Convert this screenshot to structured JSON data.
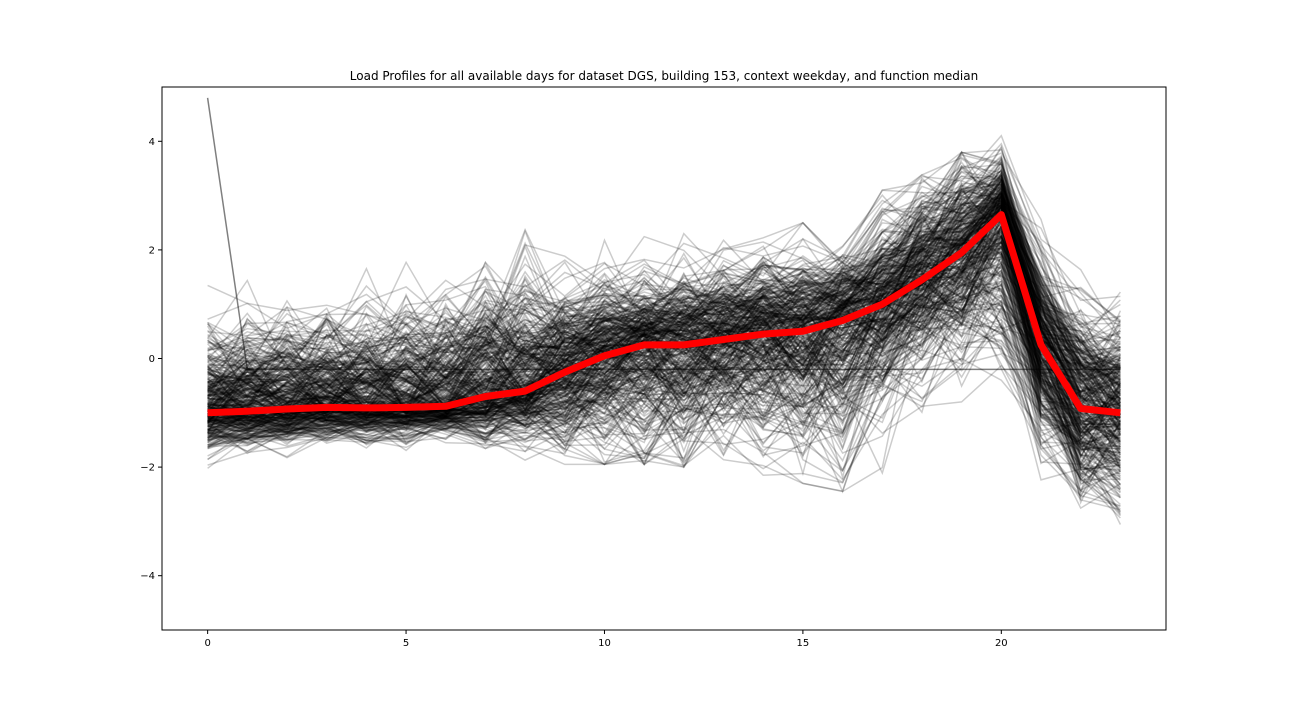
{
  "chart_data": {
    "type": "line",
    "title": "Load Profiles for all available days for dataset DGS, building 153, context weekday, and function median",
    "xlabel": "",
    "ylabel": "",
    "xlim": [
      -1.15,
      24.15
    ],
    "ylim": [
      -5,
      5
    ],
    "x_ticks": [
      0,
      5,
      10,
      15,
      20
    ],
    "x_tick_labels": [
      "0",
      "5",
      "10",
      "15",
      "20"
    ],
    "y_ticks": [
      -4,
      -2,
      0,
      2,
      4
    ],
    "y_tick_labels": [
      "−4",
      "−2",
      "0",
      "2",
      "4"
    ],
    "grid": false,
    "legend": "none",
    "x": [
      0,
      1,
      2,
      3,
      4,
      5,
      6,
      7,
      8,
      9,
      10,
      11,
      12,
      13,
      14,
      15,
      16,
      17,
      18,
      19,
      20,
      21,
      22,
      23
    ],
    "series": [
      {
        "role": "median",
        "color": "#ff0000",
        "values": [
          -1.0,
          -0.97,
          -0.93,
          -0.9,
          -0.91,
          -0.9,
          -0.88,
          -0.7,
          -0.6,
          -0.25,
          0.05,
          0.25,
          0.25,
          0.35,
          0.45,
          0.5,
          0.7,
          1.0,
          1.45,
          1.95,
          2.65,
          0.25,
          -0.92,
          -1.0
        ]
      },
      {
        "role": "outlier_profile",
        "color": "#000000",
        "values": [
          4.8,
          -0.2,
          -0.2,
          -0.2,
          -0.2,
          -0.2,
          -0.2,
          -0.2,
          -0.2,
          -0.2,
          -0.2,
          -0.2,
          -0.2,
          -0.2,
          -0.2,
          -0.2,
          -0.2,
          -0.2,
          -0.2,
          -0.2,
          -0.2,
          -0.2,
          -0.2,
          -0.2
        ]
      },
      {
        "role": "individual_profiles",
        "color": "#000000",
        "count": 400,
        "p05": [
          -1.75,
          -1.65,
          -1.6,
          -1.55,
          -1.55,
          -1.5,
          -1.45,
          -1.45,
          -1.4,
          -1.35,
          -1.35,
          -1.35,
          -1.4,
          -1.45,
          -1.55,
          -1.7,
          -1.85,
          -1.55,
          -0.9,
          -0.2,
          0.2,
          -1.7,
          -2.4,
          -2.5
        ],
        "p25": [
          -1.25,
          -1.2,
          -1.15,
          -1.1,
          -1.1,
          -1.1,
          -1.05,
          -1.0,
          -0.9,
          -0.75,
          -0.55,
          -0.45,
          -0.4,
          -0.3,
          -0.25,
          -0.3,
          -0.2,
          0.3,
          0.8,
          1.3,
          1.8,
          -0.4,
          -1.5,
          -1.6
        ],
        "p75": [
          -0.5,
          -0.45,
          -0.4,
          -0.35,
          -0.35,
          -0.3,
          -0.25,
          0.0,
          0.1,
          0.25,
          0.5,
          0.65,
          0.7,
          0.8,
          0.9,
          0.95,
          1.1,
          1.5,
          2.0,
          2.5,
          3.0,
          0.8,
          -0.3,
          -0.4
        ],
        "p95": [
          0.75,
          0.8,
          0.85,
          0.9,
          1.0,
          1.1,
          1.2,
          1.6,
          1.8,
          1.4,
          1.4,
          1.5,
          1.5,
          1.55,
          1.6,
          1.7,
          1.9,
          2.3,
          2.6,
          3.0,
          3.8,
          1.8,
          1.2,
          1.2
        ]
      }
    ]
  }
}
